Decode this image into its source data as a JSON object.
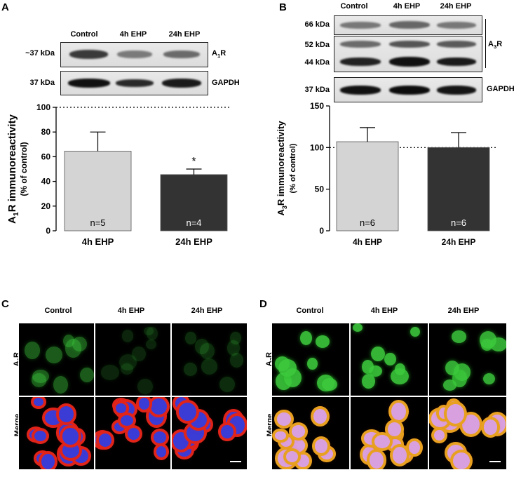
{
  "panels": {
    "A": {
      "letter": "A"
    },
    "B": {
      "letter": "B"
    },
    "C": {
      "letter": "C"
    },
    "D": {
      "letter": "D"
    }
  },
  "blot_A": {
    "lanes": [
      "Control",
      "4h EHP",
      "24h EHP"
    ],
    "rows": [
      {
        "mw": "~37 kDa",
        "protein": "A1R"
      },
      {
        "mw": "37 kDa",
        "protein": "GAPDH"
      }
    ]
  },
  "blot_B": {
    "lanes": [
      "Control",
      "4h EHP",
      "24h EHP"
    ],
    "mw_labels": [
      "66 kDa",
      "52 kDa",
      "44 kDa",
      "37 kDa"
    ],
    "protein_main": "A3R",
    "protein_loading": "GAPDH"
  },
  "micro_C": {
    "columns": [
      "Control",
      "4h EHP",
      "24h EHP"
    ],
    "rows": [
      "A1R",
      "Merge"
    ]
  },
  "micro_D": {
    "columns": [
      "Control",
      "4h EHP",
      "24h EHP"
    ],
    "rows": [
      "A3R",
      "Merge"
    ]
  },
  "chart_data": [
    {
      "type": "bar",
      "panel": "A",
      "categories": [
        "4h EHP",
        "24h EHP"
      ],
      "values": [
        64.5,
        45.5
      ],
      "errors": [
        15.5,
        4.5
      ],
      "n_labels": [
        "n=5",
        "n=4"
      ],
      "annotations": [
        "",
        "*"
      ],
      "bar_colors": [
        "#d4d4d4",
        "#333333"
      ],
      "reference_line": 100,
      "ylim": [
        0,
        100
      ],
      "yticks": [
        0,
        20,
        40,
        60,
        80,
        100
      ],
      "ylabel": "A1R immunoreactivity",
      "ylabel_sub": "(% of control)",
      "xlabel": ""
    },
    {
      "type": "bar",
      "panel": "B",
      "categories": [
        "4h EHP",
        "24h EHP"
      ],
      "values": [
        107,
        100
      ],
      "errors": [
        17,
        18
      ],
      "n_labels": [
        "n=6",
        "n=6"
      ],
      "annotations": [
        "",
        ""
      ],
      "bar_colors": [
        "#d4d4d4",
        "#333333"
      ],
      "reference_line": 100,
      "ylim": [
        0,
        150
      ],
      "yticks": [
        0,
        50,
        100,
        150
      ],
      "ylabel": "A3R immunoreactivity",
      "ylabel_sub": "(% of control)",
      "xlabel": ""
    }
  ]
}
